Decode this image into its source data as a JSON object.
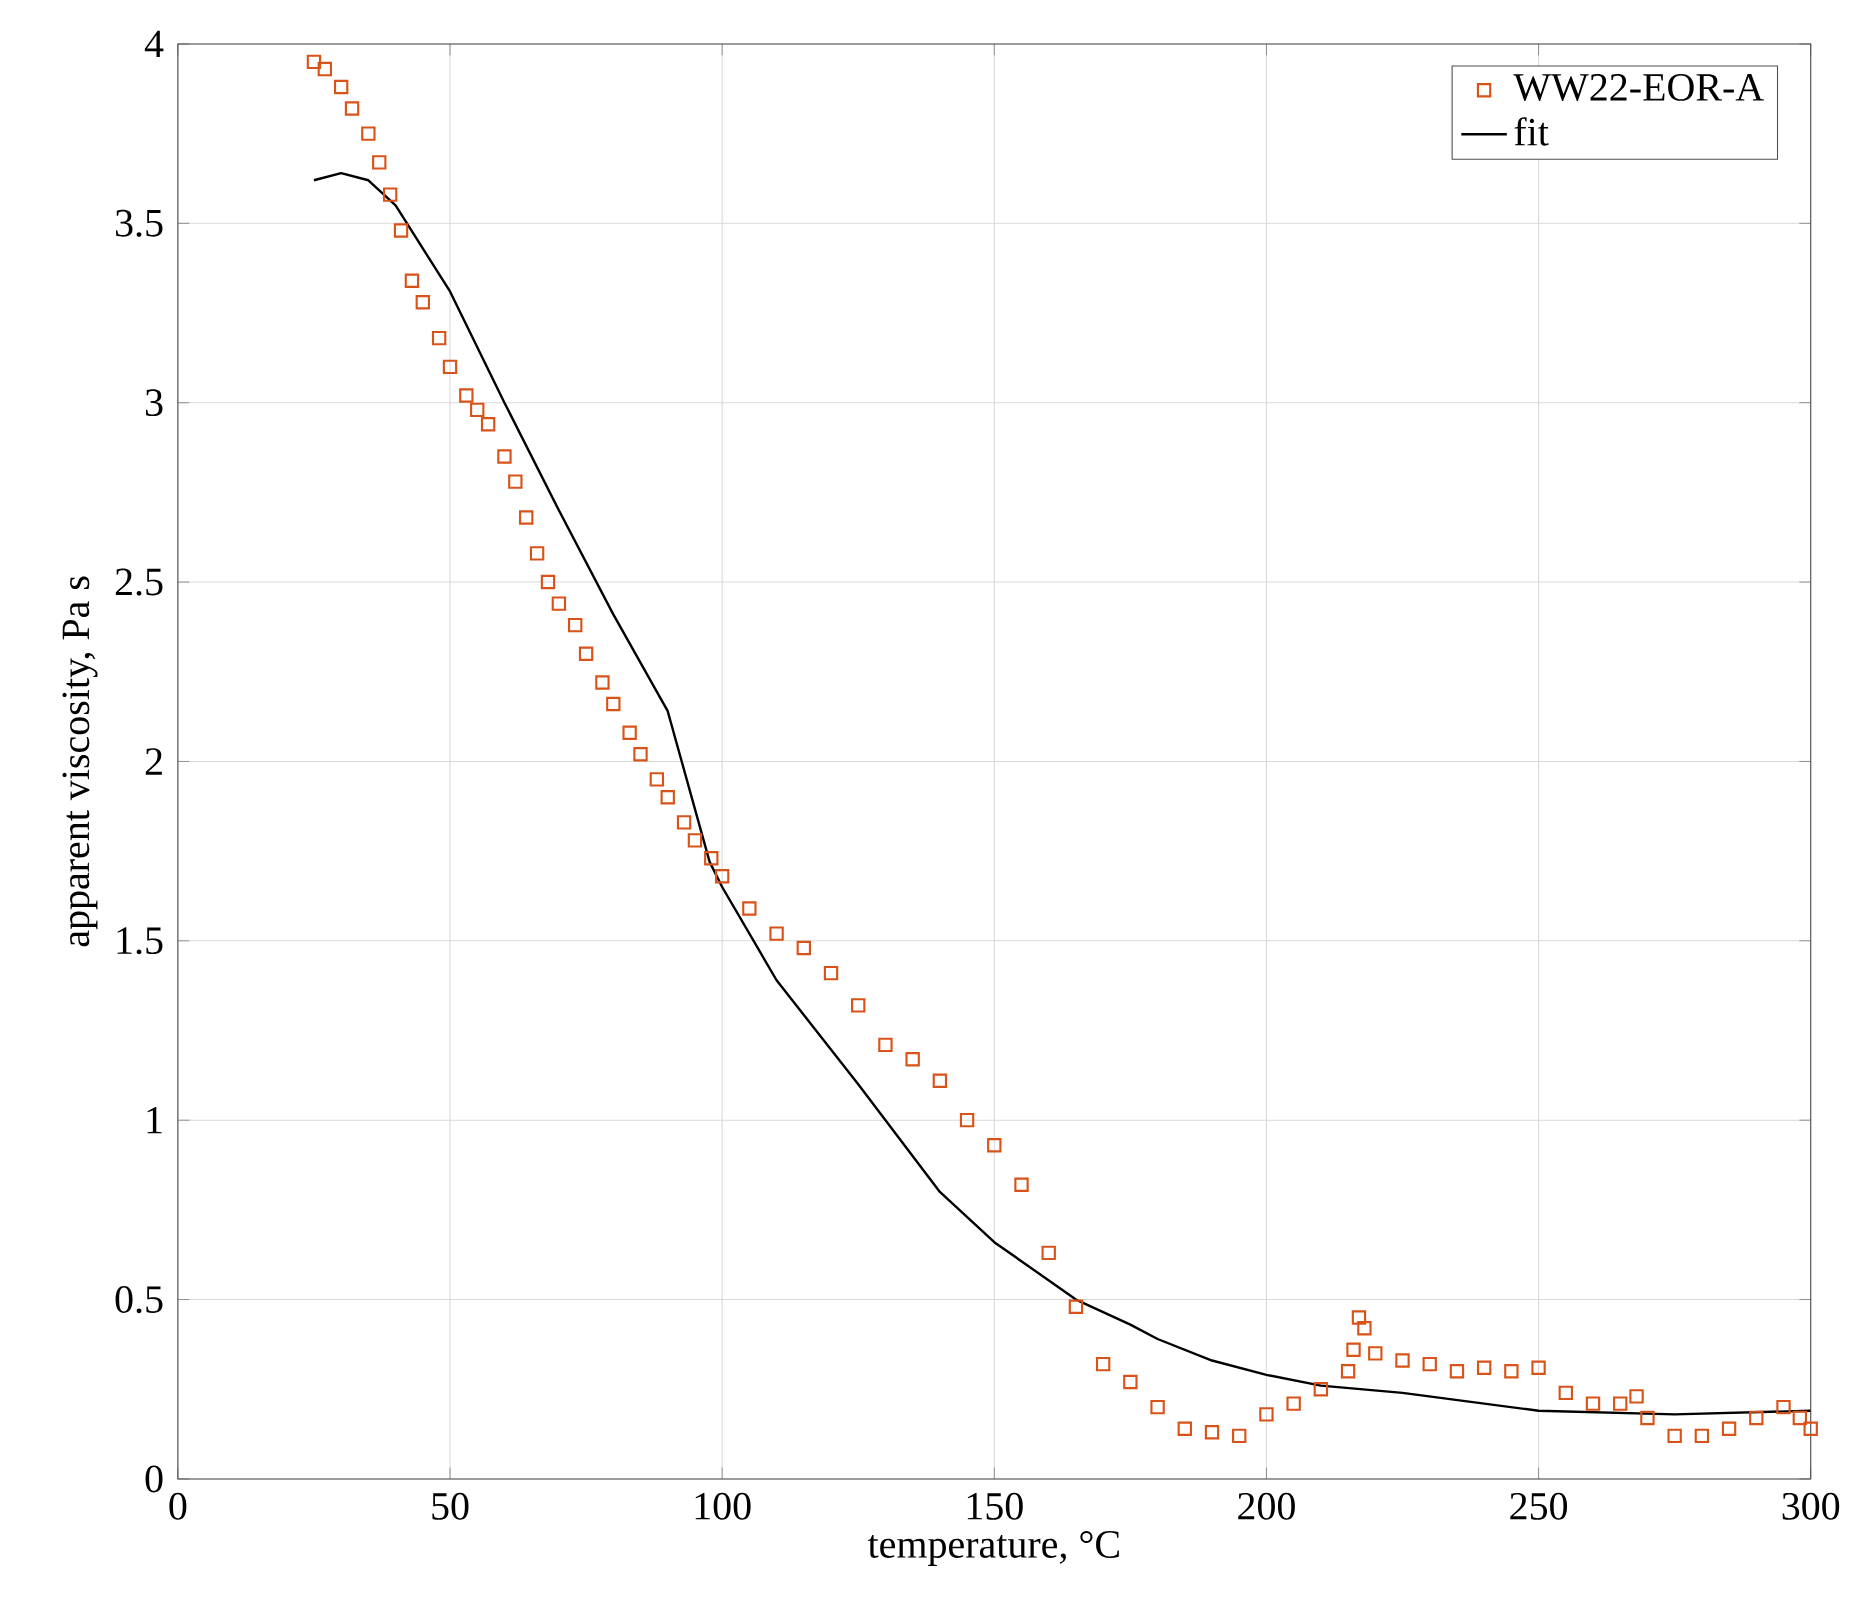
{
  "chart_data": {
    "type": "scatter",
    "xlabel": "temperature, °C",
    "ylabel": "apparent viscosity, Pa s",
    "xlim": [
      0,
      300
    ],
    "ylim": [
      0,
      4
    ],
    "xticks": [
      0,
      50,
      100,
      150,
      200,
      250,
      300
    ],
    "yticks": [
      0,
      0.5,
      1,
      1.5,
      2,
      2.5,
      3,
      3.5,
      4
    ],
    "grid": true,
    "legend": "top right",
    "series": [
      {
        "name": "WW22-EOR-A",
        "marker": "square",
        "color": "#d95319",
        "x": [
          25,
          27,
          30,
          32,
          35,
          37,
          39,
          41,
          43,
          45,
          48,
          50,
          53,
          55,
          57,
          60,
          62,
          64,
          66,
          68,
          70,
          73,
          75,
          78,
          80,
          83,
          85,
          88,
          90,
          93,
          95,
          98,
          100,
          105,
          110,
          115,
          120,
          125,
          130,
          135,
          140,
          145,
          150,
          155,
          160,
          165,
          170,
          175,
          180,
          185,
          190,
          195,
          200,
          205,
          210,
          215,
          216,
          217,
          218,
          220,
          225,
          230,
          235,
          240,
          245,
          250,
          255,
          260,
          265,
          268,
          270,
          275,
          280,
          285,
          290,
          295,
          298,
          300
        ],
        "values": [
          3.95,
          3.93,
          3.88,
          3.82,
          3.75,
          3.67,
          3.58,
          3.48,
          3.34,
          3.28,
          3.18,
          3.1,
          3.02,
          2.98,
          2.94,
          2.85,
          2.78,
          2.68,
          2.58,
          2.5,
          2.44,
          2.38,
          2.3,
          2.22,
          2.16,
          2.08,
          2.02,
          1.95,
          1.9,
          1.83,
          1.78,
          1.73,
          1.68,
          1.59,
          1.52,
          1.48,
          1.41,
          1.32,
          1.21,
          1.17,
          1.11,
          1.0,
          0.93,
          0.82,
          0.63,
          0.48,
          0.32,
          0.27,
          0.2,
          0.14,
          0.13,
          0.12,
          0.18,
          0.21,
          0.25,
          0.3,
          0.36,
          0.45,
          0.42,
          0.35,
          0.33,
          0.32,
          0.3,
          0.31,
          0.3,
          0.31,
          0.24,
          0.21,
          0.21,
          0.23,
          0.17,
          0.12,
          0.12,
          0.14,
          0.17,
          0.2,
          0.17,
          0.14
        ]
      },
      {
        "name": "fit",
        "type": "line",
        "color": "#000000",
        "x": [
          25,
          30,
          35,
          40,
          50,
          60,
          70,
          80,
          90,
          97.7,
          100,
          110,
          125,
          140,
          150,
          165,
          175,
          180,
          190,
          200,
          210,
          225,
          250,
          275,
          300
        ],
        "values": [
          3.62,
          3.64,
          3.62,
          3.55,
          3.31,
          3.0,
          2.7,
          2.41,
          2.14,
          1.72,
          1.65,
          1.39,
          1.1,
          0.8,
          0.66,
          0.5,
          0.43,
          0.39,
          0.33,
          0.29,
          0.26,
          0.24,
          0.19,
          0.18,
          0.19
        ]
      }
    ]
  }
}
